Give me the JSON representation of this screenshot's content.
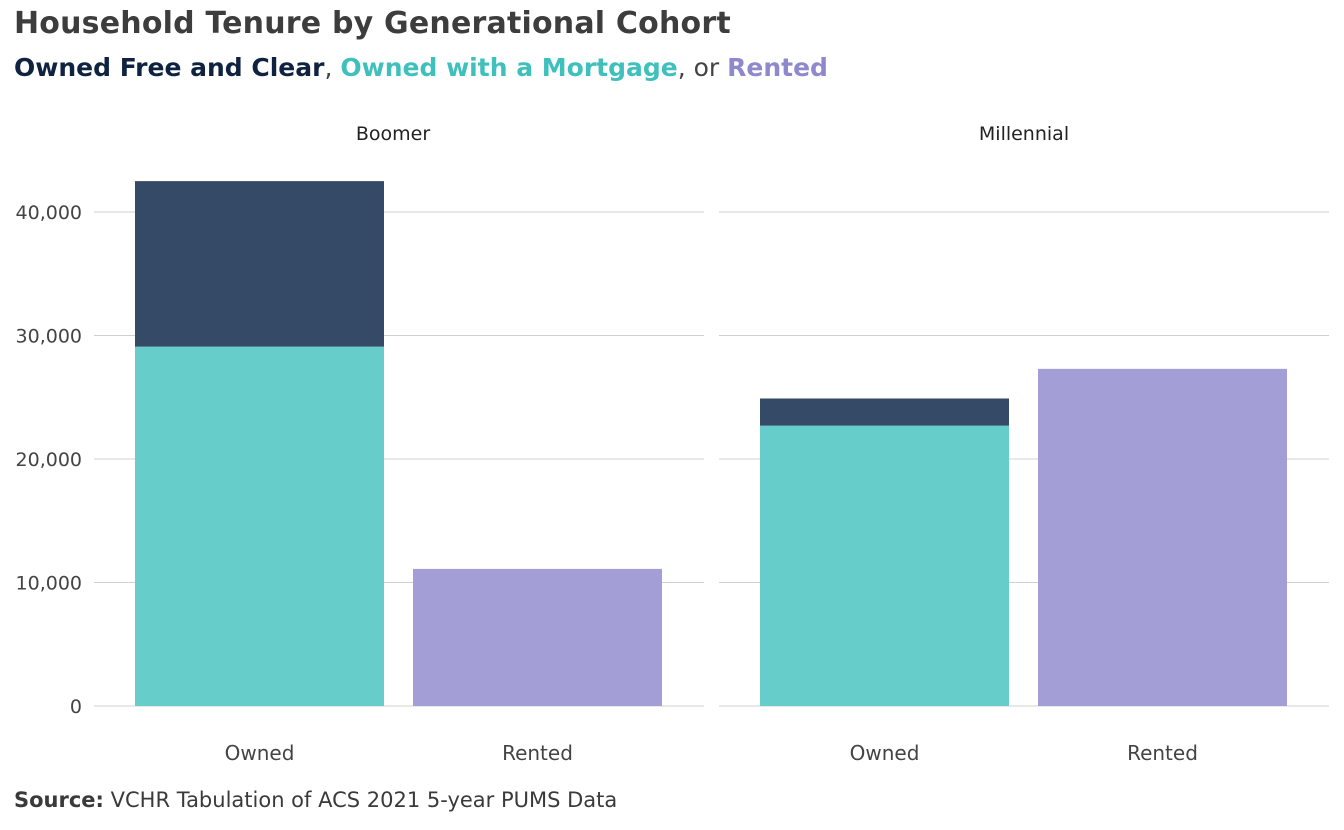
{
  "title": "Household Tenure by Generational Cohort",
  "subtitle": {
    "owned_free": "Owned Free and Clear",
    "sep1": ", ",
    "owned_mortgage": "Owned with a Mortgage",
    "sep2": ", or ",
    "rented": "Rented"
  },
  "source": {
    "label": "Source:",
    "text": " VCHR Tabulation of ACS 2021 5-year PUMS Data"
  },
  "colors": {
    "owned_free": "#344a66",
    "owned_mortgage": "#66cdcb",
    "rented": "#a39fd6",
    "owned_free_text": "#0f2240",
    "owned_mortgage_text": "#3fc0bd",
    "rented_text": "#8e88cc",
    "grid": "#d0d0d0",
    "tick": "#444444"
  },
  "chart_data": {
    "type": "bar",
    "stacked": true,
    "facets": [
      "Boomer",
      "Millennial"
    ],
    "categories": [
      "Owned",
      "Rented"
    ],
    "series": [
      {
        "name": "Owned with a Mortgage",
        "values": {
          "Boomer": [
            29100,
            0
          ],
          "Millennial": [
            22700,
            0
          ]
        }
      },
      {
        "name": "Owned Free and Clear",
        "values": {
          "Boomer": [
            13400,
            0
          ],
          "Millennial": [
            2200,
            0
          ]
        }
      },
      {
        "name": "Rented",
        "values": {
          "Boomer": [
            0,
            11100
          ],
          "Millennial": [
            0,
            27300
          ]
        }
      }
    ],
    "yticks": [
      0,
      10000,
      20000,
      30000,
      40000
    ],
    "ytick_labels": [
      "0",
      "10,000",
      "20,000",
      "30,000",
      "40,000"
    ],
    "ylim": [
      0,
      43000
    ],
    "grid": true
  }
}
